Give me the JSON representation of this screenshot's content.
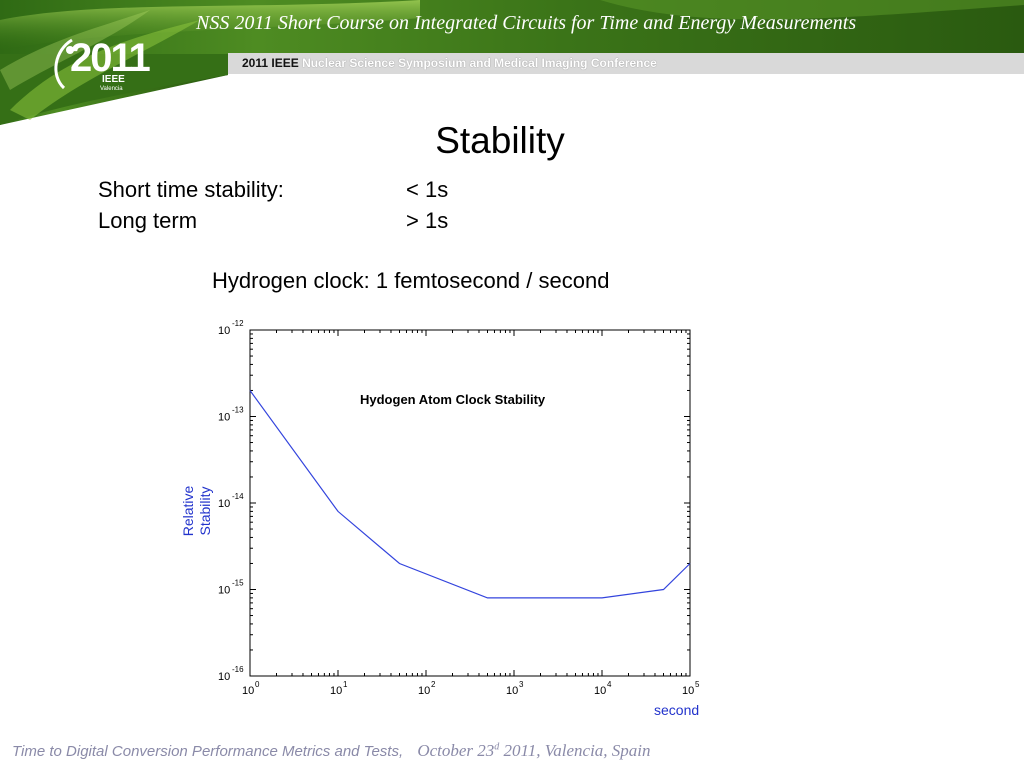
{
  "header": {
    "course_title": "NSS 2011 Short Course on  Integrated Circuits for Time and Energy Measurements",
    "conference_year": "2011 IEEE",
    "conference_title": "Nuclear Science Symposium and Medical Imaging Conference",
    "logo": {
      "year": "2011",
      "org": "IEEE",
      "city": "Valencia"
    }
  },
  "slide": {
    "title": "Stability",
    "rows": [
      {
        "label": "Short time stability:",
        "value": "< 1s"
      },
      {
        "label": "Long term",
        "value": "> 1s"
      }
    ],
    "clock_line": "Hydrogen clock: 1 femtosecond / second"
  },
  "chart_data": {
    "type": "line",
    "title": "Hydogen Atom Clock Stability",
    "xlabel": "second",
    "ylabel": "Relative Stability",
    "xscale": "log",
    "yscale": "log",
    "xlim": [
      1,
      100000
    ],
    "ylim": [
      1e-16,
      1e-12
    ],
    "x_tick_labels": [
      "10",
      "10",
      "10",
      "10",
      "10",
      "10"
    ],
    "x_tick_exponents": [
      "0",
      "1",
      "2",
      "3",
      "4",
      "5"
    ],
    "y_tick_labels": [
      "10",
      "10",
      "10",
      "10",
      "10"
    ],
    "y_tick_exponents": [
      "-16",
      "-15",
      "-14",
      "-13",
      "-12"
    ],
    "grid": false,
    "series": [
      {
        "color": "#3344dd",
        "x": [
          1,
          10,
          50,
          500,
          10000,
          50000,
          100000
        ],
        "y": [
          2e-13,
          8e-15,
          2e-15,
          8e-16,
          8e-16,
          1e-15,
          2e-15
        ]
      }
    ]
  },
  "footer": {
    "text": "Time to Digital Conversion Performance Metrics and Tests,",
    "date_prefix": "October 23",
    "date_sup": "d",
    "date_suffix": " 2011,  Valencia, Spain"
  },
  "colors": {
    "banner_green_dark": "#1f4f0f",
    "banner_green_light": "#7db83a",
    "axis_label_blue": "#2233cc",
    "line_blue": "#3344dd",
    "footer_gray": "#8a8aa8"
  }
}
